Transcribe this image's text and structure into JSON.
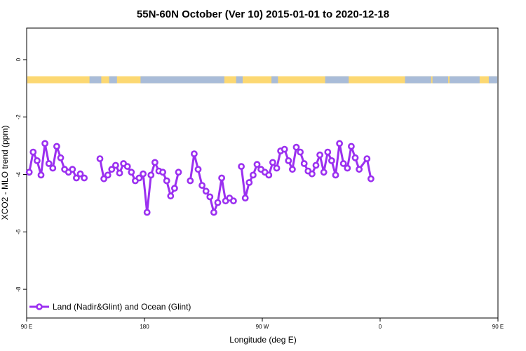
{
  "chart_data": {
    "type": "line",
    "title": "55N-60N October (Ver 10)   2015-01-01 to 2020-12-18",
    "xlabel": "Longitude (deg E)",
    "ylabel": "XCO2 - MLO trend (ppm)",
    "xlim": [
      90,
      450
    ],
    "ylim": [
      -9,
      1.1
    ],
    "x_ticks": [
      {
        "value": 90,
        "label": "90 E"
      },
      {
        "value": 180,
        "label": "180"
      },
      {
        "value": 270,
        "label": "90 W"
      },
      {
        "value": 360,
        "label": "0"
      },
      {
        "value": 450,
        "label": "90 E"
      },
      {
        "value": 540,
        "label": "180"
      }
    ],
    "y_ticks": [
      0,
      -2,
      -4,
      -6,
      -8
    ],
    "series_color": "#9b30f0",
    "land_color": "#a9bcd8",
    "ocean_color": "#fcd872",
    "legend": {
      "label": "Land (Nadir&Glint) and Ocean (Glint)",
      "position": "bottom-left"
    },
    "x": [
      92,
      95,
      98,
      101,
      104,
      107,
      110,
      113,
      116,
      119,
      122,
      125,
      128,
      131,
      134,
      137,
      140,
      146,
      149,
      152,
      155,
      158,
      161,
      164,
      167,
      170,
      173,
      176,
      179,
      182,
      185,
      188,
      191,
      194,
      197,
      200,
      203,
      206,
      209,
      212,
      215,
      218,
      221,
      224,
      227,
      230,
      233,
      236,
      239,
      242,
      245,
      248,
      251,
      254,
      257,
      260,
      263,
      266,
      269,
      272,
      275,
      278,
      281,
      284,
      287,
      290,
      293,
      296,
      299,
      302,
      305,
      308,
      311,
      314,
      317,
      320,
      323,
      326,
      329,
      332,
      335,
      338,
      341,
      344,
      350,
      353
    ],
    "values": [
      -3.92,
      -3.22,
      -3.52,
      -4.02,
      -2.92,
      -3.62,
      -3.78,
      -3.02,
      -3.42,
      -3.82,
      -3.92,
      -3.82,
      -4.12,
      -3.98,
      -4.12,
      null,
      null,
      -3.45,
      -4.15,
      -4.02,
      -3.82,
      -3.68,
      -3.95,
      -3.62,
      -3.72,
      -3.92,
      -4.22,
      -4.12,
      -3.98,
      -5.32,
      -4.02,
      -3.58,
      -3.88,
      -3.92,
      -4.22,
      -4.75,
      -4.48,
      -3.92,
      null,
      null,
      -4.22,
      -3.28,
      -3.82,
      -4.38,
      -4.58,
      -4.78,
      -5.32,
      -4.98,
      -4.12,
      -4.92,
      -4.82,
      -4.92,
      null,
      -3.72,
      -4.82,
      -4.28,
      -4.02,
      -3.65,
      -3.82,
      -3.92,
      -4.02,
      -3.58,
      -3.78,
      -3.18,
      -3.12,
      -3.52,
      -3.82,
      -3.05,
      -3.22,
      -3.62,
      -3.88,
      -3.98,
      -3.68,
      -3.32,
      -3.92,
      -3.22,
      -3.52,
      -4.02,
      -2.92,
      -3.62,
      -3.78,
      -3.02,
      -3.42,
      -3.82,
      -3.45,
      -4.15
    ],
    "x_extra": [],
    "land_ocean_band": {
      "y": -0.7
    },
    "land_segments": [
      [
        138,
        147
      ],
      [
        153,
        159
      ],
      [
        177,
        241
      ],
      [
        250,
        255
      ],
      [
        277,
        282
      ],
      [
        318,
        336
      ],
      [
        379,
        399
      ],
      [
        400,
        412
      ],
      [
        413,
        436
      ],
      [
        443,
        453
      ],
      [
        481,
        525
      ]
    ]
  }
}
